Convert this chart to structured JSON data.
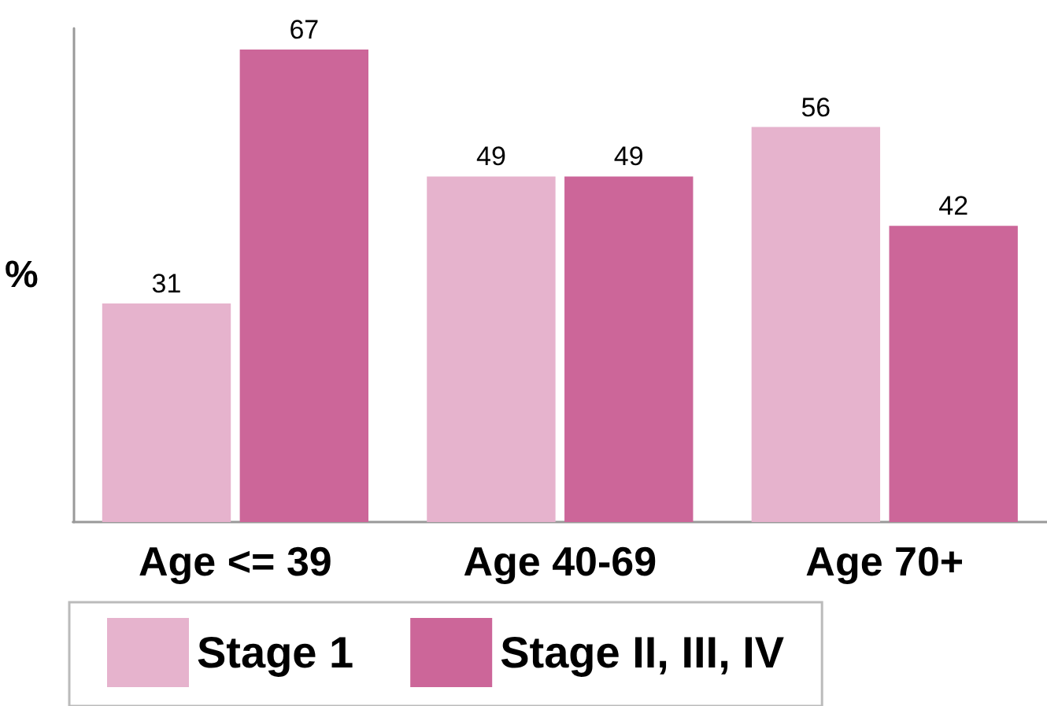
{
  "chart_data": {
    "type": "bar",
    "ylabel": "%",
    "categories": [
      "Age <= 39",
      "Age 40-69",
      "Age 70+"
    ],
    "series": [
      {
        "name": "Stage 1",
        "color": "#e6b3cd",
        "values": [
          31,
          49,
          56
        ]
      },
      {
        "name": "Stage II, III, IV",
        "color": "#cc6699",
        "values": [
          67,
          49,
          42
        ]
      }
    ],
    "ylim": [
      0,
      70
    ],
    "data_labels": true,
    "grid": false,
    "legend": "bottom"
  }
}
